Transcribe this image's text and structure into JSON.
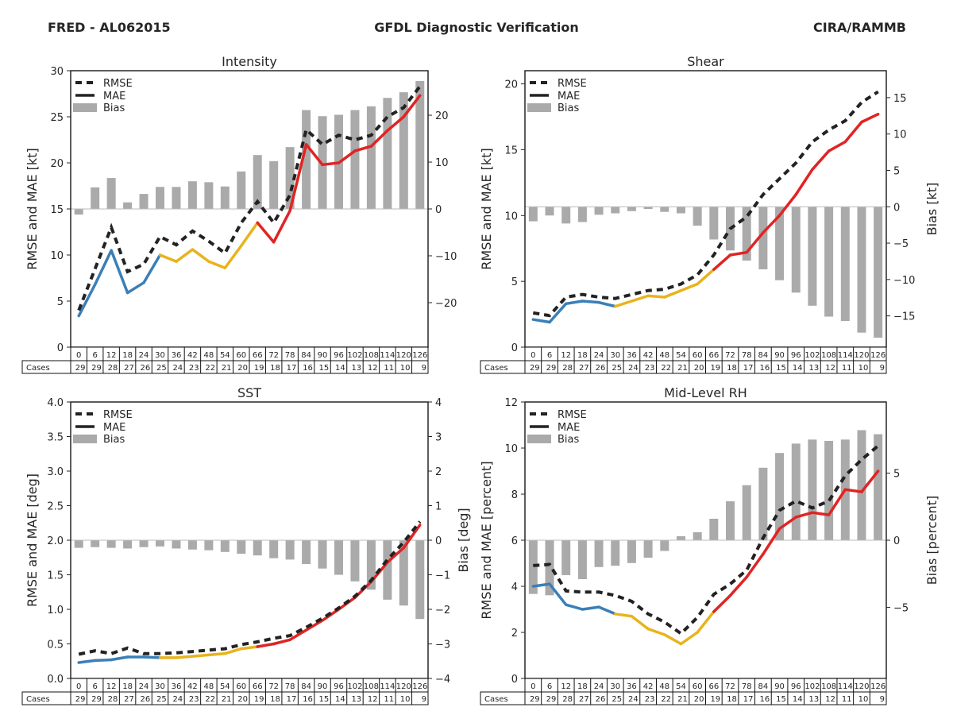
{
  "header": {
    "left": "FRED - AL062015",
    "center": "GFDL Diagnostic Verification",
    "right": "CIRA/RAMMB"
  },
  "colors": {
    "rmse": "#222222",
    "mae_early": "#3a7fb8",
    "mae_mid": "#e8b31c",
    "mae_late": "#e02424",
    "bias": "#aaaaaa",
    "zero_line": "#bbbbbb"
  },
  "table": {
    "row_label": "Cases",
    "lead_times": [
      "0",
      "6",
      "12",
      "18",
      "24",
      "30",
      "36",
      "42",
      "48",
      "54",
      "60",
      "66",
      "72",
      "78",
      "84",
      "90",
      "96",
      "102",
      "108",
      "114",
      "120",
      "126"
    ],
    "cases": [
      "29",
      "29",
      "28",
      "27",
      "26",
      "25",
      "24",
      "23",
      "22",
      "21",
      "20",
      "19",
      "18",
      "17",
      "16",
      "15",
      "14",
      "13",
      "12",
      "11",
      "10",
      "9"
    ]
  },
  "chart_data": [
    {
      "id": "intensity",
      "type": "bar+line",
      "title": "Intensity",
      "ylabel": "RMSE and MAE [kt]",
      "ylabel2": "",
      "ylim": [
        0,
        30
      ],
      "yticks": [
        "0",
        "5",
        "10",
        "15",
        "20",
        "25",
        "30"
      ],
      "ytick_values": [
        0,
        5,
        10,
        15,
        20,
        25,
        30
      ],
      "y2lim": [
        -29.5,
        29.5
      ],
      "y2ticks": [
        "−20",
        "−10",
        "0",
        "10",
        "20"
      ],
      "y2tick_values": [
        -20,
        -10,
        0,
        10,
        20
      ],
      "legend": [
        "RMSE",
        "MAE",
        "Bias"
      ],
      "legend_position": "top-left",
      "x": [
        0,
        6,
        12,
        18,
        24,
        30,
        36,
        42,
        48,
        54,
        60,
        66,
        72,
        78,
        84,
        90,
        96,
        102,
        108,
        114,
        120,
        126
      ],
      "series": [
        {
          "name": "RMSE",
          "values": [
            4.0,
            8.5,
            13.0,
            8.2,
            9.0,
            12.0,
            11.1,
            12.6,
            11.5,
            10.2,
            13.5,
            15.8,
            13.5,
            16.5,
            23.6,
            22.0,
            23.0,
            22.5,
            23.0,
            25.0,
            26.0,
            28.3
          ]
        },
        {
          "name": "MAE",
          "values": [
            3.4,
            6.8,
            10.5,
            5.9,
            7.0,
            10.0,
            9.3,
            10.6,
            9.3,
            8.6,
            11.0,
            13.5,
            11.4,
            14.8,
            22.0,
            19.8,
            20.0,
            21.3,
            21.8,
            23.5,
            25.0,
            27.3
          ]
        },
        {
          "name": "Bias",
          "axis": "right",
          "values": [
            -1.2,
            4.6,
            6.6,
            1.4,
            3.2,
            4.7,
            4.7,
            5.9,
            5.7,
            4.8,
            8.0,
            11.5,
            10.2,
            13.2,
            21.1,
            19.8,
            20.1,
            21.1,
            21.9,
            23.7,
            24.9,
            27.3
          ]
        }
      ]
    },
    {
      "id": "shear",
      "type": "bar+line",
      "title": "Shear",
      "ylabel": "RMSE and MAE [kt]",
      "ylabel2": "Bias [kt]",
      "ylim": [
        0,
        21
      ],
      "yticks": [
        "0",
        "5",
        "10",
        "15",
        "20"
      ],
      "ytick_values": [
        0,
        5,
        10,
        15,
        20
      ],
      "y2lim": [
        -19.3,
        18.7
      ],
      "y2ticks": [
        "−15",
        "−10",
        "−5",
        "0",
        "5",
        "10",
        "15"
      ],
      "y2tick_values": [
        -15,
        -10,
        -5,
        0,
        5,
        10,
        15
      ],
      "legend": [
        "RMSE",
        "MAE",
        "Bias"
      ],
      "legend_position": "top-left",
      "x": [
        0,
        6,
        12,
        18,
        24,
        30,
        36,
        42,
        48,
        54,
        60,
        66,
        72,
        78,
        84,
        90,
        96,
        102,
        108,
        114,
        120,
        126
      ],
      "series": [
        {
          "name": "RMSE",
          "values": [
            2.6,
            2.4,
            3.8,
            4.0,
            3.8,
            3.7,
            4.0,
            4.3,
            4.4,
            4.8,
            5.5,
            7.0,
            9.0,
            9.9,
            11.6,
            12.8,
            14.0,
            15.6,
            16.5,
            17.2,
            18.6,
            19.4
          ]
        },
        {
          "name": "MAE",
          "values": [
            2.1,
            1.9,
            3.3,
            3.5,
            3.4,
            3.1,
            3.5,
            3.9,
            3.8,
            4.3,
            4.8,
            5.9,
            7.0,
            7.2,
            8.7,
            10.0,
            11.6,
            13.5,
            14.9,
            15.6,
            17.1,
            17.7
          ]
        },
        {
          "name": "Bias",
          "axis": "right",
          "values": [
            -2.0,
            -1.2,
            -2.3,
            -2.1,
            -1.1,
            -0.9,
            -0.6,
            -0.3,
            -0.7,
            -0.9,
            -2.6,
            -4.5,
            -6.0,
            -7.4,
            -8.6,
            -10.1,
            -11.8,
            -13.6,
            -15.1,
            -15.7,
            -17.3,
            -18.0
          ]
        }
      ]
    },
    {
      "id": "sst",
      "type": "bar+line",
      "title": "SST",
      "ylabel": "RMSE and MAE [deg]",
      "ylabel2": "Bias [deg]",
      "ylim": [
        0,
        4.0
      ],
      "yticks": [
        "0.0",
        "0.5",
        "1.0",
        "1.5",
        "2.0",
        "2.5",
        "3.0",
        "3.5",
        "4.0"
      ],
      "ytick_values": [
        0,
        0.5,
        1.0,
        1.5,
        2.0,
        2.5,
        3.0,
        3.5,
        4.0
      ],
      "y2lim": [
        -4,
        4
      ],
      "y2ticks": [
        "−4",
        "−3",
        "−2",
        "−1",
        "0",
        "1",
        "2",
        "3",
        "4"
      ],
      "y2tick_values": [
        -4,
        -3,
        -2,
        -1,
        0,
        1,
        2,
        3,
        4
      ],
      "legend": [
        "RMSE",
        "MAE",
        "Bias"
      ],
      "legend_position": "top-left",
      "x": [
        0,
        6,
        12,
        18,
        24,
        30,
        36,
        42,
        48,
        54,
        60,
        66,
        72,
        78,
        84,
        90,
        96,
        102,
        108,
        114,
        120,
        126
      ],
      "series": [
        {
          "name": "RMSE",
          "values": [
            0.35,
            0.4,
            0.36,
            0.44,
            0.36,
            0.36,
            0.37,
            0.39,
            0.41,
            0.43,
            0.49,
            0.53,
            0.58,
            0.62,
            0.74,
            0.87,
            1.02,
            1.19,
            1.42,
            1.72,
            1.97,
            2.27
          ]
        },
        {
          "name": "MAE",
          "values": [
            0.23,
            0.26,
            0.27,
            0.31,
            0.31,
            0.3,
            0.3,
            0.32,
            0.34,
            0.36,
            0.43,
            0.46,
            0.5,
            0.56,
            0.7,
            0.84,
            1.0,
            1.17,
            1.4,
            1.68,
            1.89,
            2.22
          ]
        },
        {
          "name": "Bias",
          "axis": "right",
          "values": [
            -0.22,
            -0.2,
            -0.22,
            -0.24,
            -0.2,
            -0.18,
            -0.24,
            -0.27,
            -0.29,
            -0.34,
            -0.39,
            -0.44,
            -0.52,
            -0.56,
            -0.69,
            -0.82,
            -1.0,
            -1.19,
            -1.43,
            -1.72,
            -1.89,
            -2.28
          ]
        }
      ]
    },
    {
      "id": "rh",
      "type": "bar+line",
      "title": "Mid-Level RH",
      "ylabel": "RMSE and MAE [percent]",
      "ylabel2": "Bias [percent]",
      "ylim": [
        0,
        12
      ],
      "yticks": [
        "0",
        "2",
        "4",
        "6",
        "8",
        "10",
        "12"
      ],
      "ytick_values": [
        0,
        2,
        4,
        6,
        8,
        10,
        12
      ],
      "y2lim": [
        -10.3,
        10.3
      ],
      "y2ticks": [
        "−5",
        "0",
        "5"
      ],
      "y2tick_values": [
        -5,
        0,
        5
      ],
      "legend": [
        "RMSE",
        "MAE",
        "Bias"
      ],
      "legend_position": "top-left",
      "x": [
        0,
        6,
        12,
        18,
        24,
        30,
        36,
        42,
        48,
        54,
        60,
        66,
        72,
        78,
        84,
        90,
        96,
        102,
        108,
        114,
        120,
        126
      ],
      "series": [
        {
          "name": "RMSE",
          "values": [
            4.9,
            4.95,
            3.8,
            3.75,
            3.75,
            3.6,
            3.35,
            2.8,
            2.45,
            1.95,
            2.65,
            3.65,
            4.1,
            4.7,
            6.1,
            7.3,
            7.7,
            7.4,
            7.7,
            8.8,
            9.5,
            10.1
          ]
        },
        {
          "name": "MAE",
          "values": [
            4.0,
            4.1,
            3.2,
            3.0,
            3.1,
            2.8,
            2.7,
            2.15,
            1.9,
            1.5,
            2.0,
            2.9,
            3.6,
            4.4,
            5.4,
            6.5,
            7.0,
            7.2,
            7.1,
            8.2,
            8.1,
            9.0
          ]
        },
        {
          "name": "Bias",
          "axis": "right",
          "values": [
            -4.0,
            -4.1,
            -2.6,
            -2.9,
            -2.0,
            -1.9,
            -1.7,
            -1.3,
            -0.8,
            0.3,
            0.6,
            1.6,
            2.9,
            4.1,
            5.4,
            6.5,
            7.2,
            7.5,
            7.4,
            7.5,
            8.2,
            7.9
          ]
        }
      ]
    }
  ]
}
